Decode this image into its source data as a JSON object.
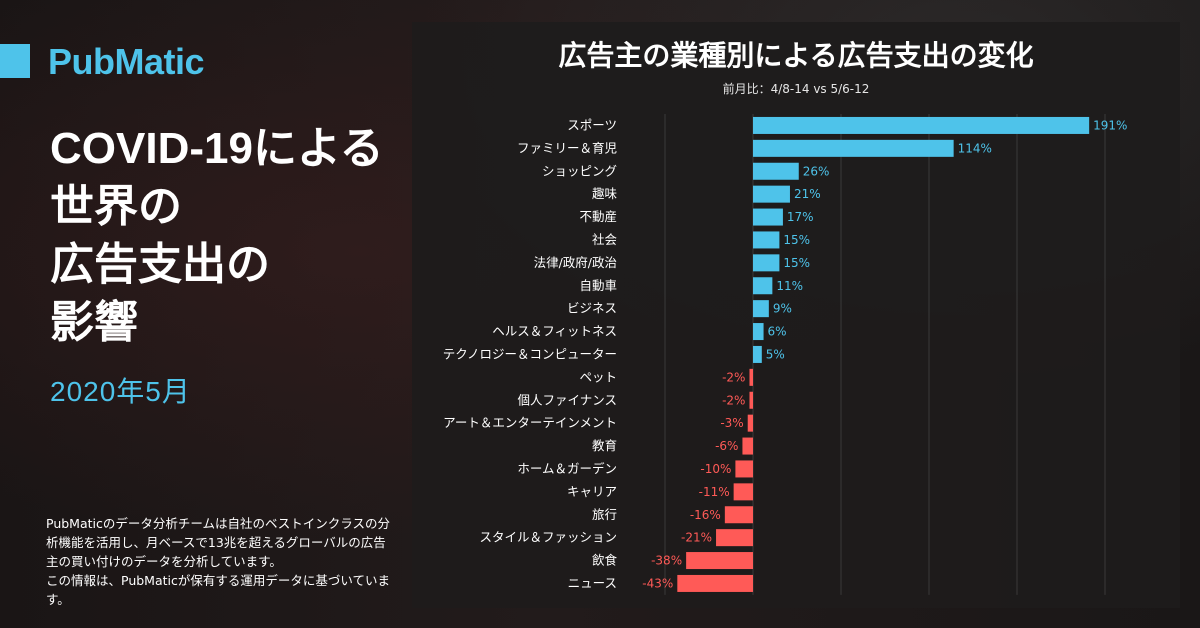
{
  "brand": {
    "name": "PubMatic",
    "color": "#4ec3ea"
  },
  "headline": {
    "lines": [
      "COVID-19による",
      "世界の",
      "広告支出の",
      "影響"
    ]
  },
  "date": "2020年5月",
  "description": {
    "p1": "PubMaticのデータ分析チームは自社のベストインクラスの分析機能を活用し、月ベースで13兆を超えるグローバルの広告主の買い付けのデータを分析しています。",
    "p2": "この情報は、PubMaticが保有する運用データに基づいています。"
  },
  "chart_data": {
    "type": "bar",
    "orientation": "horizontal",
    "title": "広告主の業種別による広告支出の変化",
    "subtitle": "前月比：4/8-14 vs 5/6-12",
    "categories": [
      "スポーツ",
      "ファミリー＆育児",
      "ショッピング",
      "趣味",
      "不動産",
      "社会",
      "法律/政府/政治",
      "自動車",
      "ビジネス",
      "ヘルス＆フィットネス",
      "テクノロジー＆コンピューター",
      "ペット",
      "個人ファイナンス",
      "アート＆エンターテインメント",
      "教育",
      "ホーム＆ガーデン",
      "キャリア",
      "旅行",
      "スタイル＆ファッション",
      "飲食",
      "ニュース"
    ],
    "values": [
      191,
      114,
      26,
      21,
      17,
      15,
      15,
      11,
      9,
      6,
      5,
      -2,
      -2,
      -3,
      -6,
      -10,
      -11,
      -16,
      -21,
      -38,
      -43
    ],
    "value_labels": [
      "191%",
      "114%",
      "26%",
      "21%",
      "17%",
      "15%",
      "15%",
      "11%",
      "9%",
      "6%",
      "5%",
      "-2%",
      "-2%",
      "-3%",
      "-6%",
      "-10%",
      "-11%",
      "-16%",
      "-21%",
      "-38%",
      "-43%"
    ],
    "xlim": [
      -50,
      200
    ],
    "grid": true,
    "colors": {
      "positive": "#4ec3ea",
      "negative": "#ff5a57",
      "grid": "#3a3a3a"
    }
  }
}
